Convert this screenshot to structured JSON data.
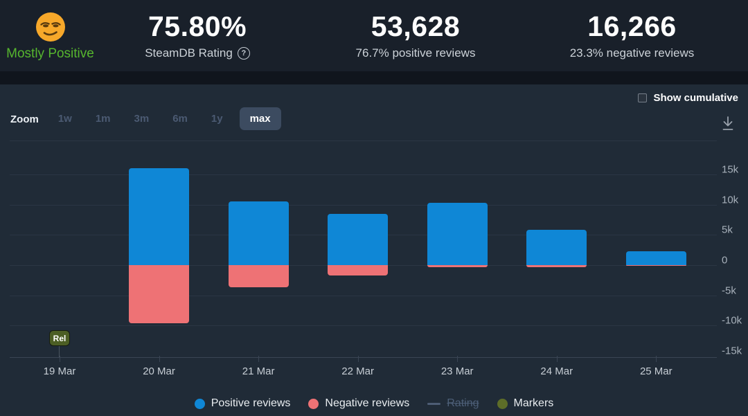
{
  "header": {
    "rating_summary": {
      "emoji": "smirking-face",
      "label": "Mostly Positive",
      "color": "#56b62e"
    },
    "stats": [
      {
        "value": "75.80%",
        "label": "SteamDB Rating",
        "help_glyph": "?"
      },
      {
        "value": "53,628",
        "label": "76.7% positive reviews"
      },
      {
        "value": "16,266",
        "label": "23.3% negative reviews"
      }
    ]
  },
  "controls": {
    "show_cumulative_label": "Show cumulative",
    "show_cumulative_checked": false,
    "zoom_label": "Zoom",
    "zoom_ranges": [
      "1w",
      "1m",
      "3m",
      "6m",
      "1y",
      "max"
    ],
    "zoom_active": "max",
    "download_icon": "download-arrow"
  },
  "chart_data": {
    "type": "bar",
    "stacking": "stacked columns, positives above zero and negatives below zero",
    "categories": [
      "19 Mar",
      "20 Mar",
      "21 Mar",
      "22 Mar",
      "23 Mar",
      "24 Mar",
      "25 Mar"
    ],
    "series": [
      {
        "name": "Positive reviews",
        "color": "#0f87d6",
        "values": [
          0,
          16100,
          10550,
          8500,
          10300,
          5900,
          2280
        ]
      },
      {
        "name": "Negative reviews",
        "color": "#ee7275",
        "values": [
          0,
          -9700,
          -3650,
          -1750,
          -400,
          -400,
          -150
        ]
      }
    ],
    "y_ticks": [
      {
        "label": "15k",
        "value": 15000
      },
      {
        "label": "10k",
        "value": 10000
      },
      {
        "label": "5k",
        "value": 5000
      },
      {
        "label": "0",
        "value": 0
      },
      {
        "label": "-5k",
        "value": -5000
      },
      {
        "label": "-10k",
        "value": -10000
      },
      {
        "label": "-15k",
        "value": -15000
      }
    ],
    "ylim": [
      -15500,
      20700
    ],
    "grid": true,
    "y_axis_side": "right",
    "legend_position": "bottom",
    "annotation": {
      "label": "Rel",
      "category_index": 0
    }
  },
  "legend": {
    "items": [
      {
        "marker": "dot",
        "color": "#0f87d6",
        "label": "Positive reviews",
        "disabled": false
      },
      {
        "marker": "dot",
        "color": "#ee7275",
        "label": "Negative reviews",
        "disabled": false
      },
      {
        "marker": "line",
        "color": "#4d5d75",
        "label": "Rating",
        "disabled": true
      },
      {
        "marker": "dot",
        "color": "#5d6d28",
        "label": "Markers",
        "disabled": false
      }
    ]
  }
}
